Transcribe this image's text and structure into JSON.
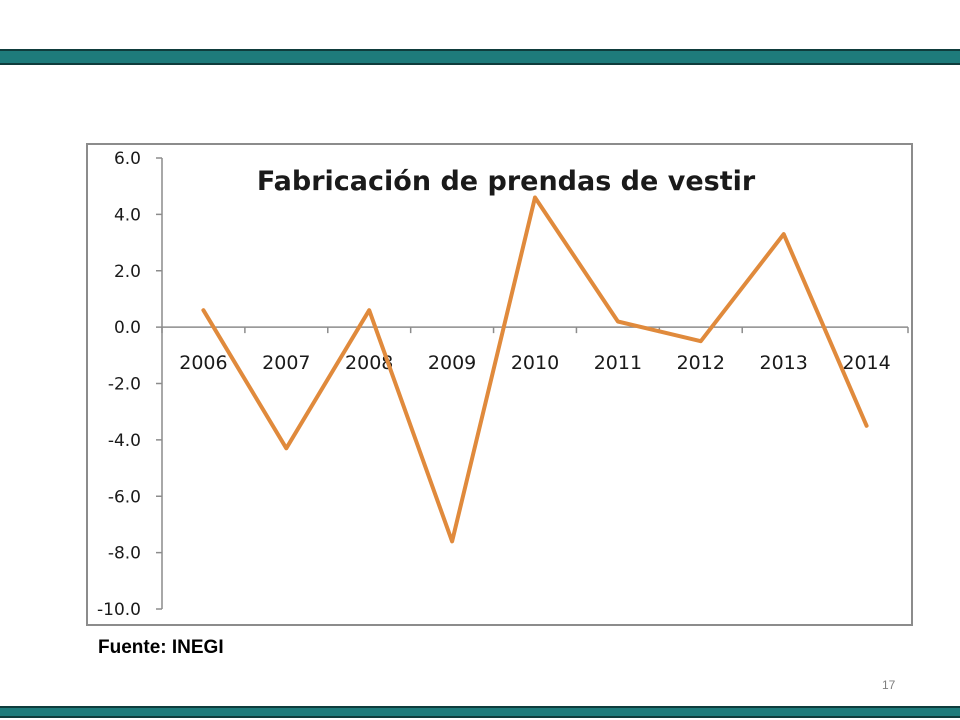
{
  "source_note": "Fuente: INEGI",
  "page_number": "17",
  "colors": {
    "band": "#1e7b7b",
    "line": "#e08a3c",
    "axis": "#8c8c8c"
  },
  "chart_data": {
    "type": "line",
    "title": "Fabricación de prendas de vestir",
    "categories": [
      "2006",
      "2007",
      "2008",
      "2009",
      "2010",
      "2011",
      "2012",
      "2013",
      "2014"
    ],
    "values": [
      0.6,
      -4.3,
      0.6,
      -7.6,
      4.6,
      0.2,
      -0.5,
      3.3,
      -3.5
    ],
    "ylim": [
      -10.0,
      6.0
    ],
    "yticks": [
      "6.0",
      "4.0",
      "2.0",
      "0.0",
      "-2.0",
      "-4.0",
      "-6.0",
      "-8.0",
      "-10.0"
    ],
    "xlabel": "",
    "ylabel": "",
    "grid": false,
    "legend": "none"
  }
}
